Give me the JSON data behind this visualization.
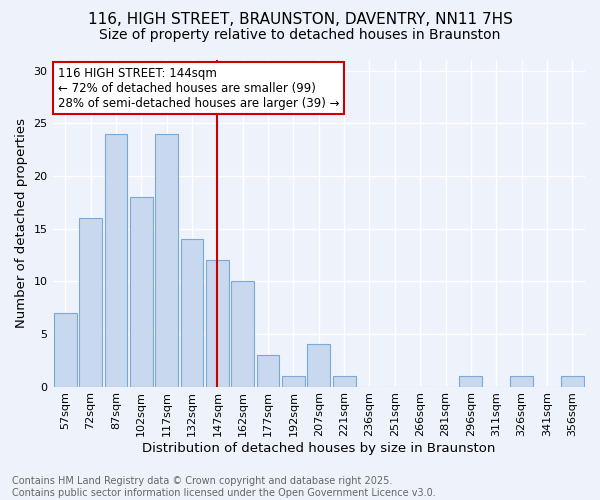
{
  "title_line1": "116, HIGH STREET, BRAUNSTON, DAVENTRY, NN11 7HS",
  "title_line2": "Size of property relative to detached houses in Braunston",
  "xlabel": "Distribution of detached houses by size in Braunston",
  "ylabel": "Number of detached properties",
  "categories": [
    "57sqm",
    "72sqm",
    "87sqm",
    "102sqm",
    "117sqm",
    "132sqm",
    "147sqm",
    "162sqm",
    "177sqm",
    "192sqm",
    "207sqm",
    "221sqm",
    "236sqm",
    "251sqm",
    "266sqm",
    "281sqm",
    "296sqm",
    "311sqm",
    "326sqm",
    "341sqm",
    "356sqm"
  ],
  "values": [
    7,
    16,
    24,
    18,
    24,
    14,
    12,
    10,
    3,
    1,
    4,
    1,
    0,
    0,
    0,
    0,
    1,
    0,
    1,
    0,
    1
  ],
  "bar_color": "#c8d8ee",
  "bar_edge_color": "#7aaad4",
  "annotation_box_text": "116 HIGH STREET: 144sqm\n← 72% of detached houses are smaller (99)\n28% of semi-detached houses are larger (39) →",
  "annotation_box_color": "#ffffff",
  "annotation_box_edge_color": "#cc0000",
  "vline_x_index": 6,
  "vline_color": "#cc0000",
  "ylim": [
    0,
    31
  ],
  "yticks": [
    0,
    5,
    10,
    15,
    20,
    25,
    30
  ],
  "footer_text": "Contains HM Land Registry data © Crown copyright and database right 2025.\nContains public sector information licensed under the Open Government Licence v3.0.",
  "background_color": "#eef2fa",
  "title_fontsize": 11,
  "subtitle_fontsize": 10,
  "axis_label_fontsize": 9.5,
  "tick_fontsize": 8,
  "annotation_fontsize": 8.5,
  "footer_fontsize": 7
}
